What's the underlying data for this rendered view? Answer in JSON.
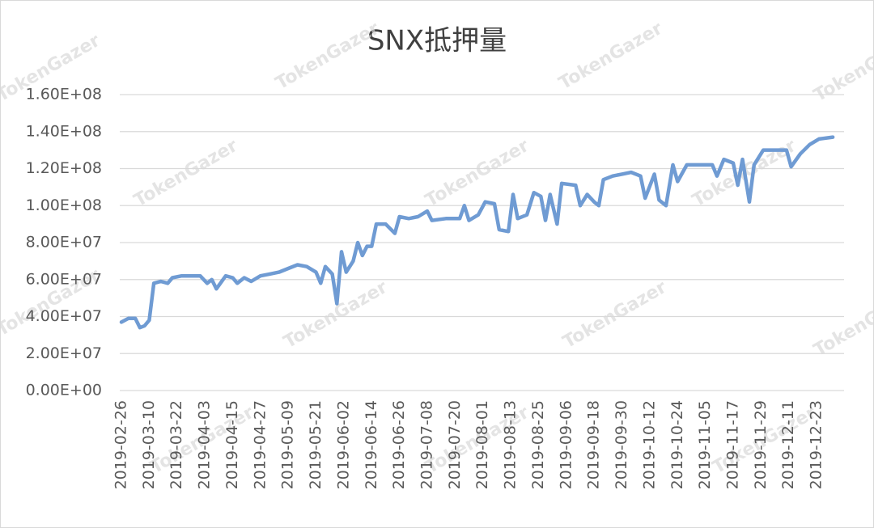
{
  "chart_data": {
    "type": "line",
    "title": "SNX抵押量",
    "watermark": "TokenGazer",
    "x": [
      "2019-02-26",
      "2019-03-01",
      "2019-03-04",
      "2019-03-06",
      "2019-03-08",
      "2019-03-10",
      "2019-03-12",
      "2019-03-15",
      "2019-03-18",
      "2019-03-20",
      "2019-03-24",
      "2019-03-28",
      "2019-04-01",
      "2019-04-04",
      "2019-04-06",
      "2019-04-08",
      "2019-04-12",
      "2019-04-15",
      "2019-04-17",
      "2019-04-20",
      "2019-04-23",
      "2019-04-27",
      "2019-05-01",
      "2019-05-05",
      "2019-05-09",
      "2019-05-13",
      "2019-05-17",
      "2019-05-21",
      "2019-05-23",
      "2019-05-25",
      "2019-05-28",
      "2019-05-30",
      "2019-06-01",
      "2019-06-03",
      "2019-06-06",
      "2019-06-08",
      "2019-06-10",
      "2019-06-12",
      "2019-06-14",
      "2019-06-16",
      "2019-06-20",
      "2019-06-24",
      "2019-06-26",
      "2019-06-30",
      "2019-07-04",
      "2019-07-08",
      "2019-07-10",
      "2019-07-16",
      "2019-07-22",
      "2019-07-24",
      "2019-07-26",
      "2019-07-30",
      "2019-08-02",
      "2019-08-06",
      "2019-08-08",
      "2019-08-12",
      "2019-08-14",
      "2019-08-16",
      "2019-08-20",
      "2019-08-23",
      "2019-08-26",
      "2019-08-28",
      "2019-08-30",
      "2019-09-02",
      "2019-09-04",
      "2019-09-10",
      "2019-09-12",
      "2019-09-15",
      "2019-09-18",
      "2019-09-20",
      "2019-09-22",
      "2019-09-26",
      "2019-09-30",
      "2019-10-04",
      "2019-10-08",
      "2019-10-10",
      "2019-10-14",
      "2019-10-16",
      "2019-10-19",
      "2019-10-22",
      "2019-10-24",
      "2019-10-28",
      "2019-11-03",
      "2019-11-08",
      "2019-11-10",
      "2019-11-13",
      "2019-11-17",
      "2019-11-19",
      "2019-11-21",
      "2019-11-24",
      "2019-11-26",
      "2019-11-30",
      "2019-12-06",
      "2019-12-10",
      "2019-12-12",
      "2019-12-16",
      "2019-12-20",
      "2019-12-24",
      "2019-12-30"
    ],
    "series": [
      {
        "color": "#6f9bd3",
        "values": [
          37000000,
          39000000,
          39000000,
          34000000,
          35000000,
          38000000,
          58000000,
          59000000,
          58000000,
          61000000,
          62000000,
          62000000,
          62000000,
          58000000,
          60000000,
          55000000,
          62000000,
          61000000,
          58000000,
          61000000,
          59000000,
          62000000,
          63000000,
          64000000,
          66000000,
          68000000,
          67000000,
          64000000,
          58000000,
          67000000,
          63000000,
          47000000,
          75000000,
          64000000,
          70000000,
          80000000,
          73000000,
          78000000,
          78000000,
          90000000,
          90000000,
          85000000,
          94000000,
          93000000,
          94000000,
          97000000,
          92000000,
          93000000,
          93000000,
          100000000,
          92000000,
          95000000,
          102000000,
          101000000,
          87000000,
          86000000,
          106000000,
          93000000,
          95000000,
          107000000,
          105000000,
          92000000,
          106000000,
          90000000,
          112000000,
          111000000,
          100000000,
          106000000,
          102000000,
          100000000,
          114000000,
          116000000,
          117000000,
          118000000,
          116000000,
          104000000,
          117000000,
          103000000,
          100000000,
          122000000,
          113000000,
          122000000,
          122000000,
          122000000,
          116000000,
          125000000,
          123000000,
          111000000,
          125000000,
          102000000,
          122000000,
          130000000,
          130000000,
          130000000,
          121000000,
          128000000,
          133000000,
          136000000,
          137000000
        ]
      }
    ],
    "xlim": [
      "2019-02-26",
      "2019-12-31"
    ],
    "xticks": [
      "2019-02-26",
      "2019-03-10",
      "2019-03-22",
      "2019-04-03",
      "2019-04-15",
      "2019-04-27",
      "2019-05-09",
      "2019-05-21",
      "2019-06-02",
      "2019-06-14",
      "2019-06-26",
      "2019-07-08",
      "2019-07-20",
      "2019-08-01",
      "2019-08-13",
      "2019-08-25",
      "2019-09-06",
      "2019-09-18",
      "2019-09-30",
      "2019-10-12",
      "2019-10-24",
      "2019-11-05",
      "2019-11-17",
      "2019-11-29",
      "2019-12-11",
      "2019-12-23"
    ],
    "ylim": [
      0,
      160000000
    ],
    "yticks": [
      {
        "value": 0,
        "label": "0.00E+00"
      },
      {
        "value": 20000000,
        "label": "2.00E+07"
      },
      {
        "value": 40000000,
        "label": "4.00E+07"
      },
      {
        "value": 60000000,
        "label": "6.00E+07"
      },
      {
        "value": 80000000,
        "label": "8.00E+07"
      },
      {
        "value": 100000000,
        "label": "1.00E+08"
      },
      {
        "value": 120000000,
        "label": "1.20E+08"
      },
      {
        "value": 140000000,
        "label": "1.40E+08"
      },
      {
        "value": 160000000,
        "label": "1.60E+08"
      }
    ],
    "grid": true
  }
}
